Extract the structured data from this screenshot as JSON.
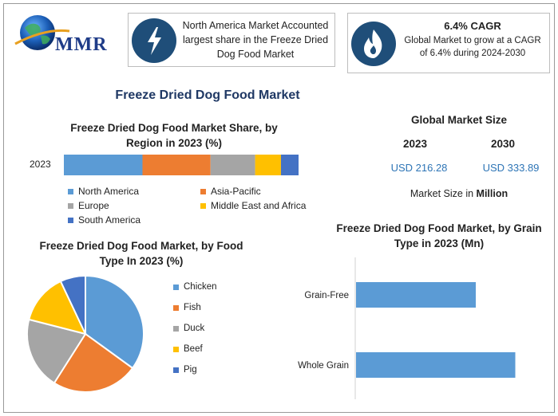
{
  "colors": {
    "blue": "#5b9bd5",
    "orange": "#ed7d31",
    "gray": "#a5a5a5",
    "yellow": "#ffc000",
    "darkblue": "#4472c4",
    "navy": "#1f4e79",
    "title_navy": "#1f3864",
    "usd_blue": "#2e75b6"
  },
  "header": {
    "logo_text": "MMR",
    "box1_text": "North America Market Accounted largest share in the Freeze Dried Dog Food Market",
    "box1_icon": "lightning-bolt-icon",
    "box2_title": "6.4% CAGR",
    "box2_text": "Global Market to grow at a CAGR of 6.4% during 2024-2030",
    "box2_icon": "flame-icon"
  },
  "main_title": "Freeze Dried Dog Food Market",
  "market_size": {
    "title": "Global Market Size",
    "year1": "2023",
    "year2": "2030",
    "value1": "USD 216.28",
    "value2": "USD 333.89",
    "note_prefix": "Market Size in ",
    "note_bold": "Million"
  },
  "chart_data": [
    {
      "type": "bar",
      "stacked": true,
      "orientation": "horizontal",
      "title": "Freeze Dried Dog Food Market Share, by Region in 2023 (%)",
      "categories": [
        "2023"
      ],
      "series": [
        {
          "name": "North America",
          "values": [
            33.5
          ],
          "color": "#5b9bd5"
        },
        {
          "name": "Asia-Pacific",
          "values": [
            29
          ],
          "color": "#ed7d31"
        },
        {
          "name": "Europe",
          "values": [
            19
          ],
          "color": "#a5a5a5"
        },
        {
          "name": "Middle East and Africa",
          "values": [
            11
          ],
          "color": "#ffc000"
        },
        {
          "name": "South America",
          "values": [
            7.5
          ],
          "color": "#4472c4"
        }
      ],
      "xlim": [
        0,
        100
      ]
    },
    {
      "type": "pie",
      "title": "Freeze Dried Dog Food Market, by Food Type In 2023 (%)",
      "labels": [
        "Chicken",
        "Fish",
        "Duck",
        "Beef",
        "Pig"
      ],
      "values": [
        35,
        24,
        20,
        14,
        7
      ],
      "colors": [
        "#5b9bd5",
        "#ed7d31",
        "#a5a5a5",
        "#ffc000",
        "#4472c4"
      ]
    },
    {
      "type": "bar",
      "orientation": "horizontal",
      "title": "Freeze Dried Dog Food Market, by Grain Type in 2023 (Mn)",
      "categories": [
        "Grain-Free",
        "Whole Grain"
      ],
      "values": [
        100,
        133
      ],
      "xlim": [
        0,
        140
      ],
      "color": "#5b9bd5"
    }
  ]
}
